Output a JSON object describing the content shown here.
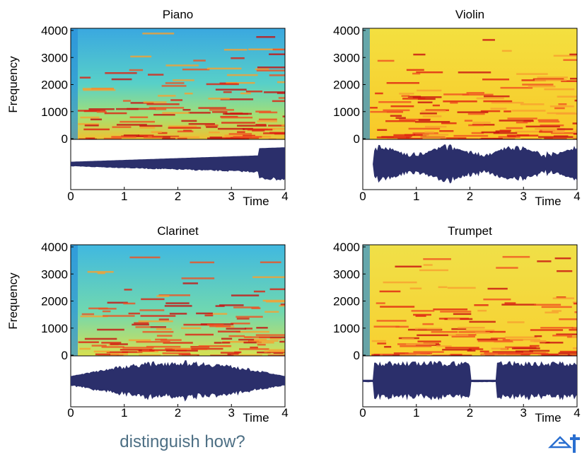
{
  "chart_data": [
    {
      "type": "spectrogram",
      "title": "Piano",
      "xlabel": "Time",
      "ylabel": "Frequency",
      "xlim": [
        0,
        4
      ],
      "xticks": [
        0,
        1,
        2,
        3,
        4
      ],
      "ylim": [
        0,
        4000
      ],
      "yticks": [
        0,
        1000,
        2000,
        3000,
        4000
      ],
      "color": "#2b2f6b"
    },
    {
      "type": "spectrogram",
      "title": "Violin",
      "xlabel": "Time",
      "xlim": [
        0,
        4
      ],
      "xticks": [
        0,
        1,
        2,
        3,
        4
      ],
      "ylim": [
        0,
        4000
      ],
      "yticks": [
        0,
        1000,
        2000,
        3000,
        4000
      ],
      "color": "#2b2f6b"
    },
    {
      "type": "spectrogram",
      "title": "Clarinet",
      "xlabel": "Time",
      "ylabel": "Frequency",
      "xlim": [
        0,
        4
      ],
      "xticks": [
        0,
        1,
        2,
        3,
        4
      ],
      "ylim": [
        0,
        4000
      ],
      "yticks": [
        0,
        1000,
        2000,
        3000,
        4000
      ],
      "color": "#2b2f6b"
    },
    {
      "type": "spectrogram",
      "title": "Trumpet",
      "xlabel": "Time",
      "xlim": [
        0,
        4
      ],
      "xticks": [
        0,
        1,
        2,
        3,
        4
      ],
      "ylim": [
        0,
        4000
      ],
      "yticks": [
        0,
        1000,
        2000,
        3000,
        4000
      ],
      "color": "#2b2f6b"
    }
  ],
  "caption": "distinguish how?"
}
